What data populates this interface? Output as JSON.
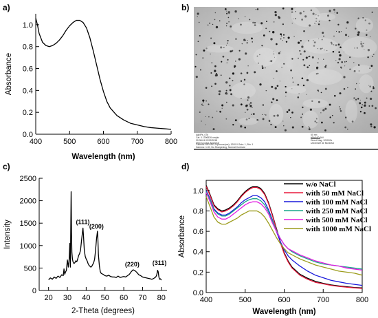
{
  "panels": {
    "a": {
      "label": "a)"
    },
    "b": {
      "label": "b)"
    },
    "c": {
      "label": "c)"
    },
    "d": {
      "label": "d)"
    }
  },
  "tem_image": {
    "caption_left": [
      "AgNPs_076",
      "Cal: 0.1396526 nm/pix",
      "20:38:04 02/22/2018",
      "Microscopist: Montreal"
    ],
    "caption_right": [
      "50 nm",
      "HV=100.0kV",
      "Direct Mag: 120000x",
      "Université de Montréal"
    ],
    "caption_bottom": [
      "Camera: MEGAV, Exposure(ms): 1200.0 Gain: 1, Bin: 1",
      "Gamma: 1.00, No Sharpening, Normal Contrast"
    ]
  },
  "chart_data": [
    {
      "panel": "a",
      "type": "line",
      "xlabel": "Wavelength (nm)",
      "ylabel": "Absorbance",
      "xlim": [
        400,
        800
      ],
      "ylim": [
        0.0,
        1.1
      ],
      "xticks": [
        400,
        500,
        600,
        700,
        800
      ],
      "yticks": [
        0.0,
        0.2,
        0.4,
        0.6,
        0.8,
        1.0
      ],
      "series": [
        {
          "x": [
            400,
            405,
            410,
            420,
            430,
            440,
            450,
            460,
            470,
            480,
            490,
            500,
            510,
            520,
            530,
            540,
            550,
            560,
            570,
            580,
            590,
            600,
            610,
            620,
            640,
            660,
            680,
            700,
            720,
            740,
            760,
            780,
            800
          ],
          "y": [
            1.06,
            1.0,
            0.92,
            0.84,
            0.81,
            0.8,
            0.81,
            0.83,
            0.86,
            0.9,
            0.95,
            0.99,
            1.02,
            1.04,
            1.04,
            1.02,
            0.97,
            0.88,
            0.76,
            0.63,
            0.5,
            0.39,
            0.3,
            0.24,
            0.17,
            0.13,
            0.1,
            0.085,
            0.07,
            0.06,
            0.055,
            0.05,
            0.045
          ],
          "color": "#000000"
        }
      ]
    },
    {
      "panel": "c",
      "type": "line",
      "xlabel": "2-Theta (degrees)",
      "ylabel": "Intensity",
      "xlim": [
        15,
        83
      ],
      "ylim": [
        0,
        2500
      ],
      "xticks": [
        20,
        30,
        40,
        50,
        60,
        70,
        80
      ],
      "yticks": [
        0,
        500,
        1000,
        1500,
        2000,
        2500
      ],
      "annotations": [
        {
          "text": "(111)",
          "x": 38.2,
          "y": 1480
        },
        {
          "text": "(200)",
          "x": 45.5,
          "y": 1380
        },
        {
          "text": "(220)",
          "x": 64.5,
          "y": 540
        },
        {
          "text": "(311)",
          "x": 79.0,
          "y": 570
        }
      ],
      "series": [
        {
          "x": [
            20,
            21,
            22,
            23,
            24,
            25,
            26,
            27,
            27.8,
            28.2,
            28.6,
            29,
            29.5,
            30,
            30.5,
            31,
            31.3,
            31.6,
            32,
            32.2,
            32.4,
            32.7,
            33,
            33.5,
            34,
            34.5,
            35,
            35.5,
            36,
            36.5,
            37,
            37.5,
            38,
            38.3,
            38.6,
            39,
            39.5,
            40,
            40.5,
            41,
            41.5,
            42,
            42.5,
            43,
            43.5,
            44,
            44.5,
            45,
            45.5,
            46,
            46.2,
            46.5,
            47,
            47.5,
            48,
            49,
            50,
            51,
            52,
            53,
            54,
            55,
            56,
            57,
            58,
            59,
            60,
            61,
            62,
            63,
            64,
            65,
            66,
            67,
            68,
            69,
            70,
            71,
            72,
            73,
            74,
            75,
            76,
            77,
            77.5,
            78,
            78.3,
            78.7,
            79,
            79.5,
            80
          ],
          "y": [
            240,
            280,
            250,
            300,
            270,
            320,
            290,
            350,
            330,
            480,
            360,
            410,
            450,
            680,
            520,
            720,
            1050,
            520,
            2200,
            1300,
            850,
            700,
            640,
            600,
            620,
            660,
            640,
            700,
            780,
            820,
            900,
            1100,
            1290,
            1390,
            1200,
            900,
            760,
            700,
            660,
            600,
            560,
            540,
            520,
            540,
            580,
            620,
            700,
            900,
            1150,
            1320,
            1200,
            800,
            560,
            420,
            380,
            360,
            330,
            320,
            340,
            310,
            300,
            300,
            290,
            320,
            290,
            300,
            310,
            300,
            330,
            360,
            420,
            460,
            440,
            400,
            350,
            330,
            300,
            290,
            280,
            270,
            260,
            250,
            270,
            300,
            340,
            450,
            420,
            300,
            250,
            260,
            230
          ],
          "color": "#000000"
        }
      ]
    },
    {
      "panel": "d",
      "type": "line",
      "xlabel": "Wavelength (nm)",
      "ylabel": "Absorbance",
      "xlim": [
        400,
        800
      ],
      "ylim": [
        0.0,
        1.1
      ],
      "xticks": [
        400,
        500,
        600,
        700,
        800
      ],
      "yticks": [
        0.0,
        0.2,
        0.4,
        0.6,
        0.8,
        1.0
      ],
      "x": [
        400,
        410,
        420,
        430,
        440,
        450,
        460,
        470,
        480,
        490,
        500,
        510,
        520,
        530,
        540,
        550,
        560,
        570,
        580,
        590,
        600,
        610,
        620,
        640,
        660,
        680,
        700,
        720,
        740,
        760,
        780,
        800
      ],
      "series": [
        {
          "name": "w/o NaCl",
          "color": "#000000",
          "y": [
            1.05,
            0.96,
            0.86,
            0.82,
            0.8,
            0.81,
            0.83,
            0.86,
            0.9,
            0.95,
            0.99,
            1.02,
            1.04,
            1.04,
            1.02,
            0.97,
            0.88,
            0.76,
            0.63,
            0.5,
            0.39,
            0.31,
            0.25,
            0.18,
            0.14,
            0.11,
            0.09,
            0.075,
            0.065,
            0.057,
            0.05,
            0.045
          ]
        },
        {
          "name": "with 50 mM NaCl",
          "color": "#e8193c",
          "y": [
            1.04,
            0.95,
            0.85,
            0.81,
            0.79,
            0.8,
            0.82,
            0.85,
            0.89,
            0.94,
            0.98,
            1.01,
            1.03,
            1.03,
            1.01,
            0.96,
            0.87,
            0.75,
            0.62,
            0.49,
            0.38,
            0.3,
            0.24,
            0.17,
            0.13,
            0.1,
            0.085,
            0.07,
            0.06,
            0.052,
            0.046,
            0.04
          ]
        },
        {
          "name": "with 100 mM NaCl",
          "color": "#1a1adb",
          "y": [
            1.0,
            0.92,
            0.82,
            0.78,
            0.76,
            0.76,
            0.78,
            0.81,
            0.84,
            0.88,
            0.91,
            0.93,
            0.95,
            0.95,
            0.93,
            0.89,
            0.81,
            0.71,
            0.6,
            0.5,
            0.42,
            0.36,
            0.32,
            0.26,
            0.21,
            0.17,
            0.145,
            0.12,
            0.105,
            0.09,
            0.08,
            0.07
          ]
        },
        {
          "name": "with 250 mM NaCl",
          "color": "#1aa58a",
          "y": [
            0.99,
            0.91,
            0.81,
            0.77,
            0.75,
            0.75,
            0.77,
            0.8,
            0.83,
            0.86,
            0.89,
            0.91,
            0.92,
            0.92,
            0.9,
            0.86,
            0.79,
            0.7,
            0.61,
            0.53,
            0.47,
            0.43,
            0.4,
            0.36,
            0.33,
            0.3,
            0.28,
            0.27,
            0.26,
            0.25,
            0.24,
            0.23
          ]
        },
        {
          "name": "with 500 mM NaCl",
          "color": "#e21ce2",
          "y": [
            0.98,
            0.89,
            0.79,
            0.74,
            0.72,
            0.72,
            0.74,
            0.77,
            0.8,
            0.83,
            0.86,
            0.88,
            0.89,
            0.89,
            0.87,
            0.83,
            0.77,
            0.68,
            0.6,
            0.53,
            0.47,
            0.43,
            0.41,
            0.37,
            0.34,
            0.31,
            0.29,
            0.27,
            0.26,
            0.24,
            0.23,
            0.22
          ]
        },
        {
          "name": "with 1000 mM NaCl",
          "color": "#9c9c1c",
          "y": [
            0.94,
            0.84,
            0.74,
            0.69,
            0.67,
            0.67,
            0.69,
            0.71,
            0.73,
            0.76,
            0.78,
            0.8,
            0.8,
            0.8,
            0.78,
            0.74,
            0.68,
            0.61,
            0.54,
            0.48,
            0.43,
            0.39,
            0.37,
            0.33,
            0.3,
            0.27,
            0.25,
            0.23,
            0.21,
            0.2,
            0.19,
            0.17
          ]
        }
      ]
    }
  ]
}
